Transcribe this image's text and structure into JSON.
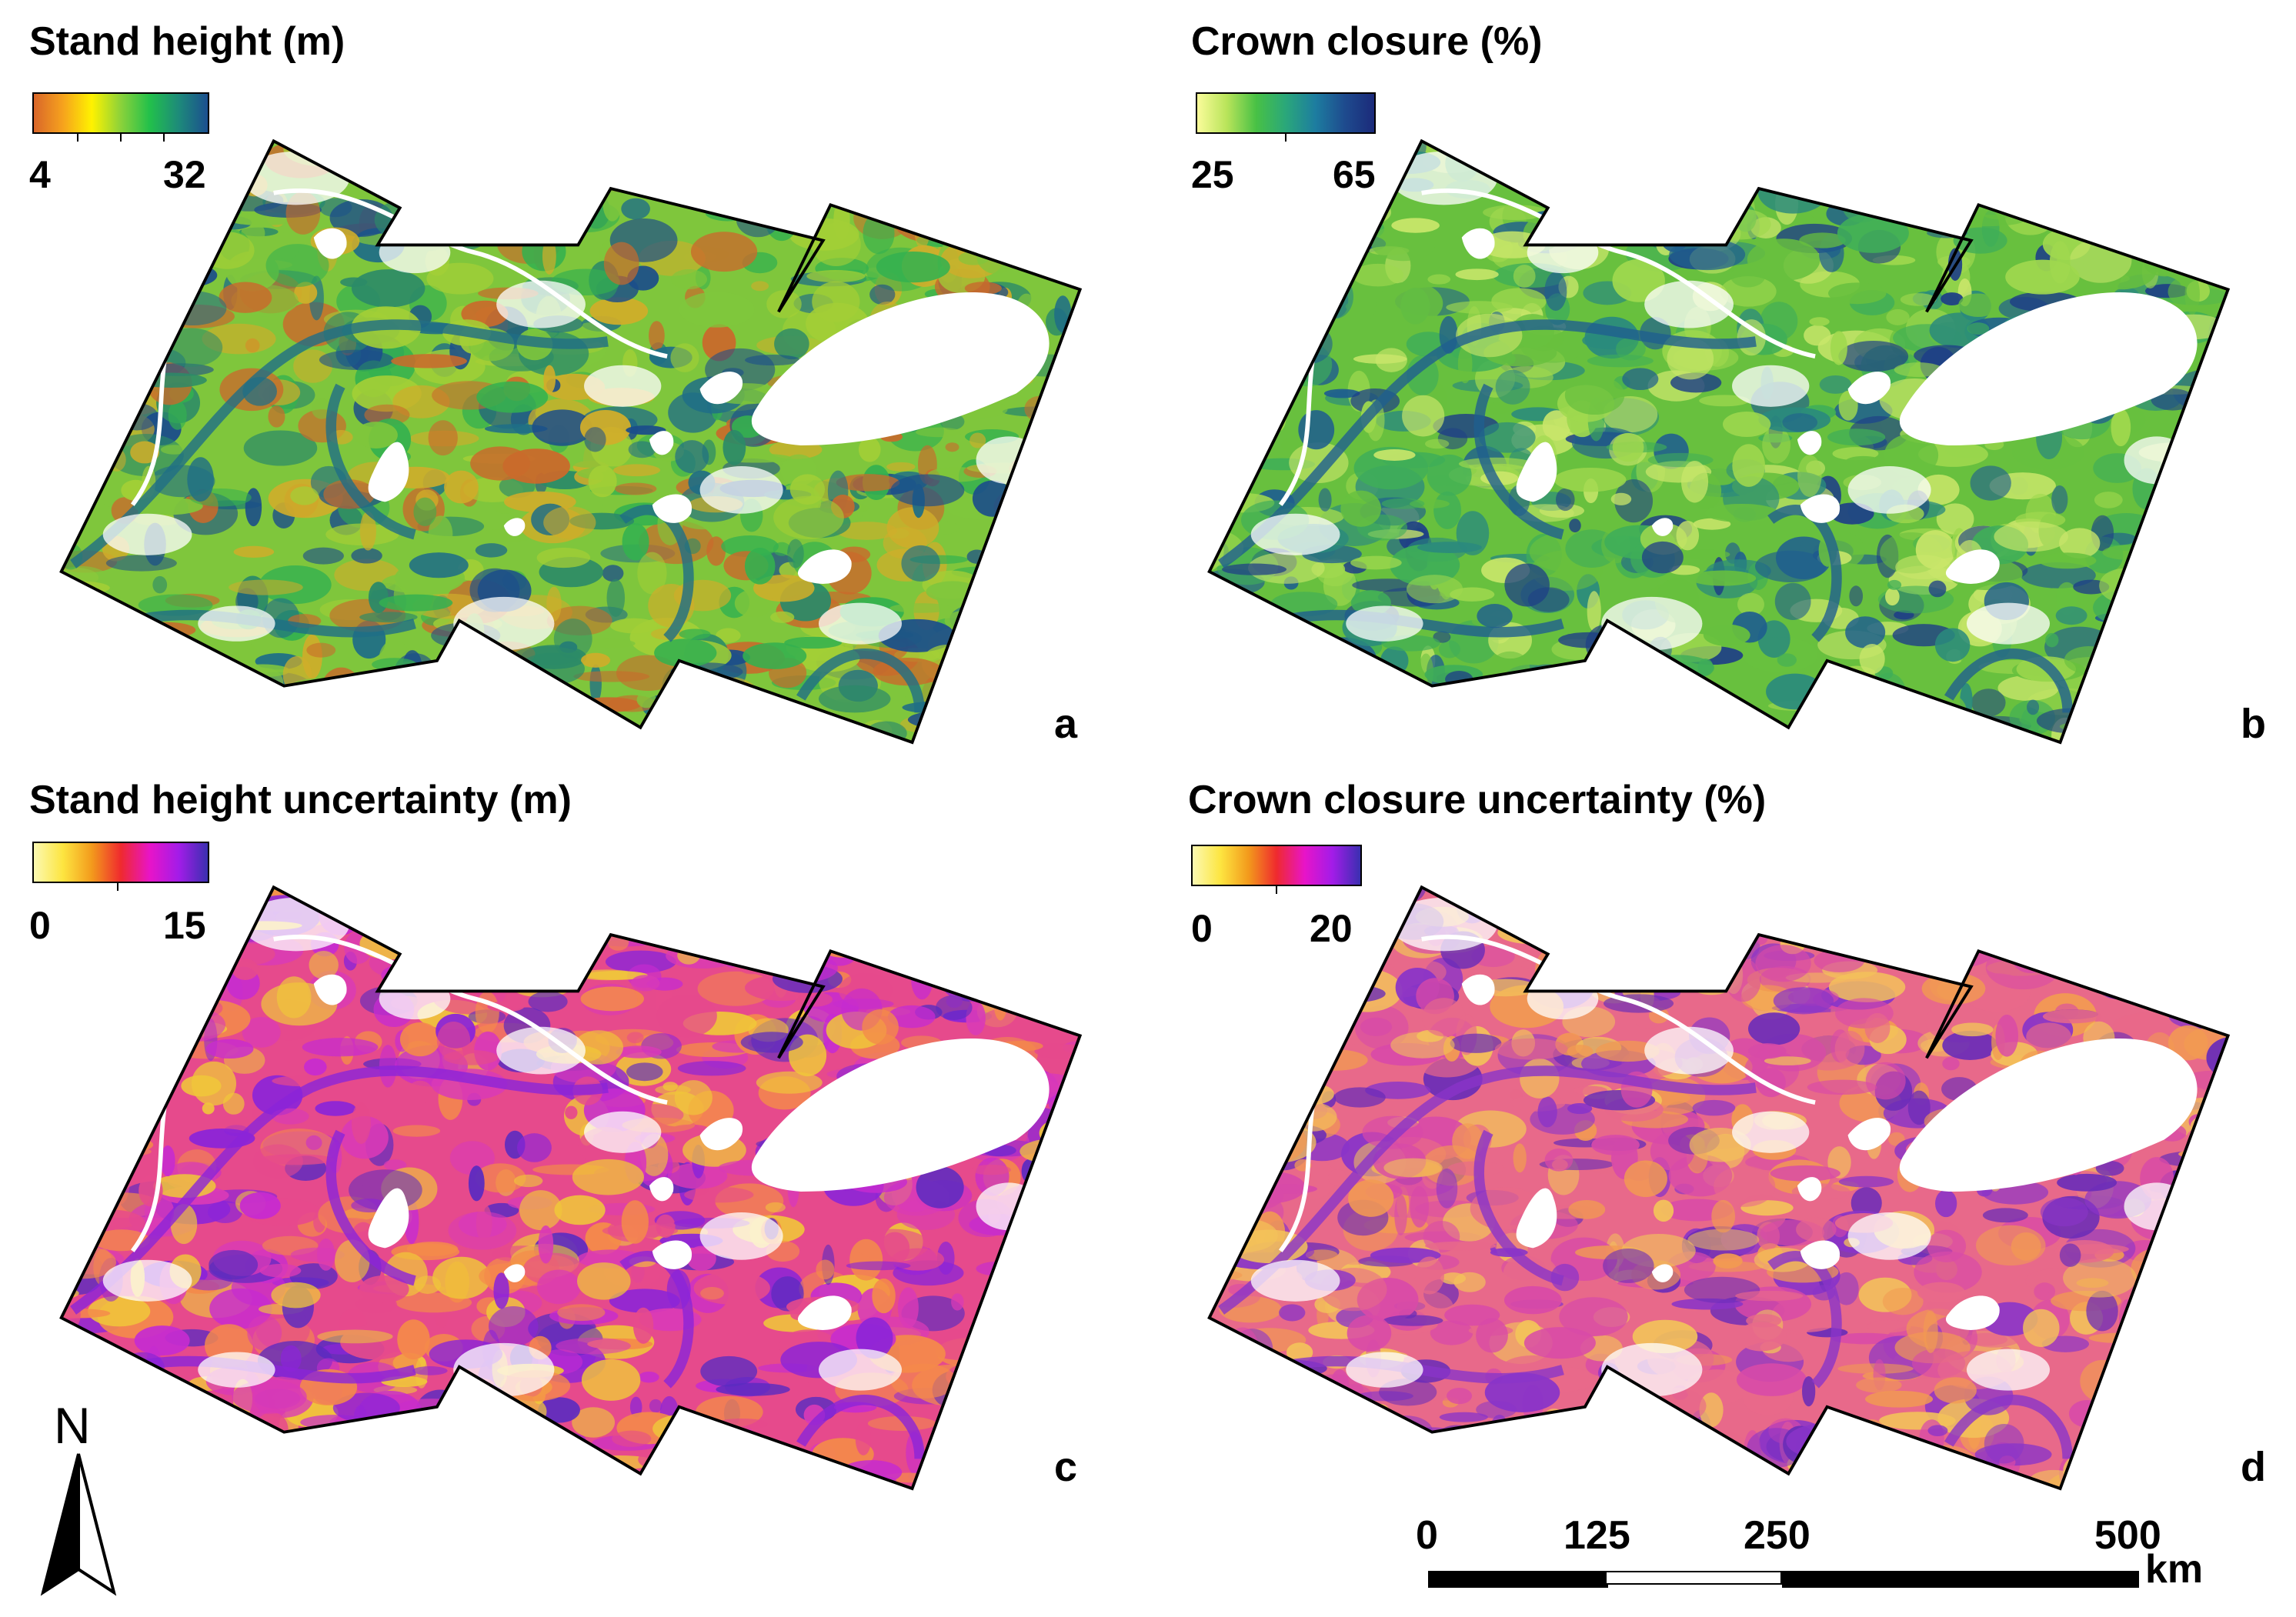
{
  "panels": [
    {
      "id": "a",
      "title": "Stand height (m)",
      "letter": "a",
      "legend": {
        "min": "4",
        "max": "32",
        "gradient": [
          "#d9662a",
          "#f6a21d",
          "#fff200",
          "#8bd23a",
          "#22c04b",
          "#1d8a7a",
          "#1c4f8f"
        ]
      },
      "map_colors": {
        "base": [
          "#7fc63c",
          "#a3cf36",
          "#d0ad2a",
          "#c96a2b",
          "#34b14f"
        ],
        "accent": [
          "#1f6e86",
          "#1b4d8a",
          "#2b8a68"
        ]
      }
    },
    {
      "id": "b",
      "title": "Crown closure (%)",
      "letter": "b",
      "legend": {
        "min": "25",
        "max": "65",
        "gradient": [
          "#fafc9a",
          "#b9e45a",
          "#48c145",
          "#2aa77a",
          "#1d7da0",
          "#1e4b8e",
          "#1b2a7a"
        ]
      },
      "map_colors": {
        "base": [
          "#68c03e",
          "#9fd84e",
          "#3fae58",
          "#c9e66a"
        ],
        "accent": [
          "#1f5f8e",
          "#1e3f86",
          "#2a8a7d"
        ]
      }
    },
    {
      "id": "c",
      "title": "Stand height uncertainty (m)",
      "letter": "c",
      "legend": {
        "min": "0",
        "max": "15",
        "gradient": [
          "#fbf9b2",
          "#fde540",
          "#f39a1c",
          "#ef2a2e",
          "#e814c8",
          "#a31ce8",
          "#3a2fb0"
        ]
      },
      "map_colors": {
        "base": [
          "#e64a8c",
          "#f0c63a",
          "#d93ab7",
          "#f48a4a"
        ],
        "accent": [
          "#8b24d8",
          "#5b2bc0",
          "#c62bd0"
        ]
      }
    },
    {
      "id": "d",
      "title": "Crown closure uncertainty (%)",
      "letter": "d",
      "legend": {
        "min": "0",
        "max": "20",
        "gradient": [
          "#fbf9b2",
          "#fde540",
          "#f39a1c",
          "#ef2a2e",
          "#e814c8",
          "#a31ce8",
          "#3a2fb0"
        ]
      },
      "map_colors": {
        "base": [
          "#e8698a",
          "#f29a52",
          "#d84aa8",
          "#f3c25a"
        ],
        "accent": [
          "#8a34c8",
          "#6a2cb8"
        ]
      }
    }
  ],
  "north_arrow": {
    "label": "N",
    "name": "north-arrow-icon"
  },
  "scale_bar": {
    "ticks": [
      "0",
      "125",
      "250",
      "500"
    ],
    "unit": "km",
    "segment_colors": [
      "#000000",
      "#ffffff",
      "#000000"
    ]
  }
}
